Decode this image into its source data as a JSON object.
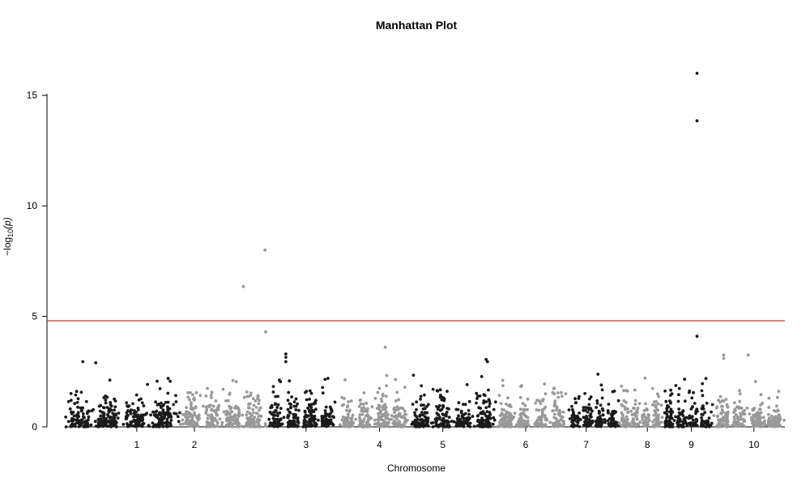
{
  "chart_data": {
    "type": "scatter",
    "title": "Manhattan Plot",
    "xlabel": "Chromosome",
    "ylabel": {
      "prefix": "−log",
      "subscript": "10",
      "body": "(p)"
    },
    "ylim": [
      0,
      16.2
    ],
    "y_ticks": [
      0,
      5,
      10,
      15
    ],
    "xlim": [
      0,
      1000
    ],
    "threshold": 4.8,
    "threshold_color": "#c0392b",
    "colors": {
      "odd": "#1a1a1a",
      "even": "#999999"
    },
    "chromosomes": [
      {
        "name": "1",
        "start": 0,
        "end": 160,
        "tick": 100
      },
      {
        "name": "2",
        "start": 160,
        "end": 280,
        "tick": 180
      },
      {
        "name": "3",
        "start": 280,
        "end": 380,
        "tick": 335
      },
      {
        "name": "4",
        "start": 380,
        "end": 480,
        "tick": 437
      },
      {
        "name": "5",
        "start": 480,
        "end": 600,
        "tick": 525
      },
      {
        "name": "6",
        "start": 600,
        "end": 700,
        "tick": 640
      },
      {
        "name": "7",
        "start": 700,
        "end": 770,
        "tick": 724
      },
      {
        "name": "8",
        "start": 770,
        "end": 830,
        "tick": 809
      },
      {
        "name": "9",
        "start": 830,
        "end": 900,
        "tick": 870
      },
      {
        "name": "10",
        "start": 900,
        "end": 1000,
        "tick": 957
      }
    ],
    "peaks": [
      {
        "x": 248,
        "y": 6.35
      },
      {
        "x": 278,
        "y": 8.0
      },
      {
        "x": 279,
        "y": 4.3
      },
      {
        "x": 878,
        "y": 16.0
      },
      {
        "x": 878,
        "y": 13.85
      },
      {
        "x": 878,
        "y": 4.1
      },
      {
        "x": 445,
        "y": 3.6
      },
      {
        "x": 307,
        "y": 3.3
      },
      {
        "x": 307,
        "y": 3.15
      },
      {
        "x": 307,
        "y": 2.95
      },
      {
        "x": 25,
        "y": 2.95
      },
      {
        "x": 43,
        "y": 2.9
      },
      {
        "x": 585,
        "y": 3.05
      },
      {
        "x": 587,
        "y": 2.95
      },
      {
        "x": 915,
        "y": 3.25
      },
      {
        "x": 915,
        "y": 3.1
      },
      {
        "x": 949,
        "y": 3.25
      }
    ]
  }
}
